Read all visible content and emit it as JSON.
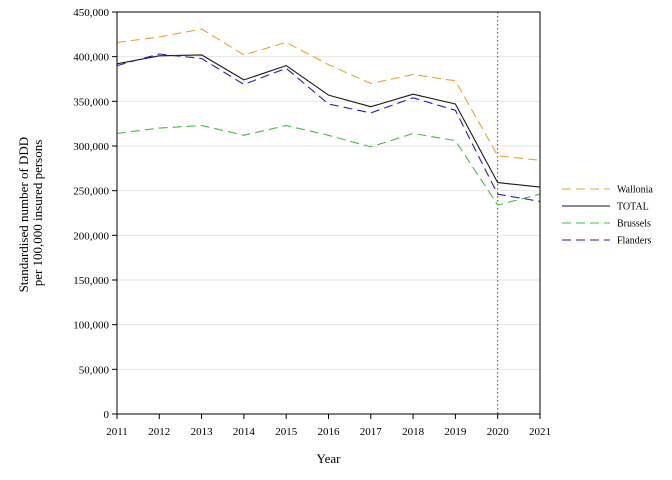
{
  "chart_data": {
    "type": "line",
    "xlabel": "Year",
    "ylabel_lines": [
      "Standardised number of DDD",
      "per 100,000 insured persons"
    ],
    "x": [
      2011,
      2012,
      2013,
      2014,
      2015,
      2016,
      2017,
      2018,
      2019,
      2020,
      2021
    ],
    "ylim": [
      0,
      450000
    ],
    "y_ticks": [
      0,
      50000,
      100000,
      150000,
      200000,
      250000,
      300000,
      350000,
      400000,
      450000
    ],
    "y_tick_labels": [
      "0",
      "50,000",
      "100,000",
      "150,000",
      "200,000",
      "250,000",
      "300,000",
      "350,000",
      "400,000",
      "450,000"
    ],
    "reference_line_x": 2020,
    "grid": "horizontal",
    "legend_position": "right",
    "series": [
      {
        "name": "Wallonia",
        "color": "#f0a030",
        "dash": "dashed",
        "values": [
          416000,
          422000,
          431000,
          402000,
          416000,
          391000,
          370000,
          380000,
          373000,
          289000,
          284000
        ]
      },
      {
        "name": "TOTAL",
        "color": "#1a1a1a",
        "dash": "solid",
        "values": [
          392000,
          401000,
          402000,
          374000,
          390000,
          357000,
          344000,
          358000,
          347000,
          259000,
          254000
        ]
      },
      {
        "name": "Brussels",
        "color": "#40c040",
        "dash": "dashed",
        "values": [
          314000,
          320000,
          323000,
          312000,
          323000,
          312000,
          299000,
          314000,
          306000,
          234000,
          246000
        ]
      },
      {
        "name": "Flanders",
        "color": "#2020c0",
        "dash": "dashed",
        "values": [
          390000,
          403000,
          398000,
          369000,
          387000,
          347000,
          337000,
          354000,
          340000,
          246000,
          238000
        ]
      }
    ]
  }
}
